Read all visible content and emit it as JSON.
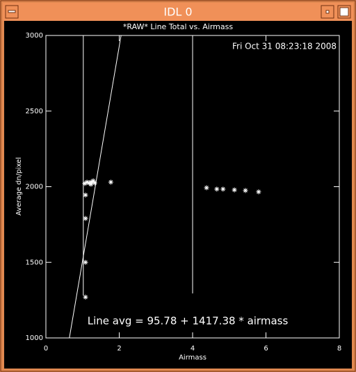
{
  "window": {
    "title": "IDL 0"
  },
  "chart_data": {
    "type": "scatter",
    "title": "*RAW* Line Total vs. Airmass",
    "timestamp": "Fri Oct 31 08:23:18 2008",
    "xlabel": "Airmass",
    "ylabel": "Average dn/pixel",
    "annotation": "Line avg = 95.78 + 1417.38 * airmass",
    "xlim": [
      0,
      8
    ],
    "ylim": [
      1000,
      3000
    ],
    "xticks": [
      0,
      2,
      4,
      6,
      8
    ],
    "yticks": [
      1000,
      1500,
      2000,
      2500,
      3000
    ],
    "color": "#ffffff",
    "x": [
      1.08,
      1.08,
      1.08,
      1.08,
      1.06,
      1.12,
      1.18,
      1.23,
      1.29,
      1.33,
      1.23,
      1.77,
      4.38,
      4.66,
      4.83,
      5.14,
      5.44,
      5.8
    ],
    "y": [
      1270,
      1500,
      1790,
      1945,
      2021,
      2030,
      2025,
      2030,
      2039,
      2025,
      2016,
      2030,
      1993,
      1984,
      1984,
      1979,
      1975,
      1966
    ],
    "fit_line": {
      "x": [
        0.64,
        2.05
      ],
      "y": [
        1000,
        3000
      ]
    },
    "vlines": [
      {
        "x": 1.02,
        "y": [
          1280,
          3000
        ]
      },
      {
        "x": 4.0,
        "y": [
          1294,
          3000
        ]
      }
    ]
  }
}
